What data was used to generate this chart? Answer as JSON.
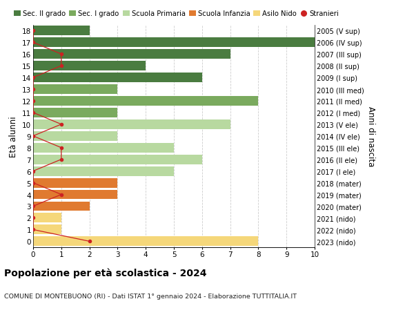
{
  "ages": [
    18,
    17,
    16,
    15,
    14,
    13,
    12,
    11,
    10,
    9,
    8,
    7,
    6,
    5,
    4,
    3,
    2,
    1,
    0
  ],
  "right_labels": [
    "2005 (V sup)",
    "2006 (IV sup)",
    "2007 (III sup)",
    "2008 (II sup)",
    "2009 (I sup)",
    "2010 (III med)",
    "2011 (II med)",
    "2012 (I med)",
    "2013 (V ele)",
    "2014 (IV ele)",
    "2015 (III ele)",
    "2016 (II ele)",
    "2017 (I ele)",
    "2018 (mater)",
    "2019 (mater)",
    "2020 (mater)",
    "2021 (nido)",
    "2022 (nido)",
    "2023 (nido)"
  ],
  "bar_values": [
    2,
    10,
    7,
    4,
    6,
    3,
    8,
    3,
    7,
    3,
    5,
    6,
    5,
    3,
    3,
    2,
    1,
    1,
    8
  ],
  "bar_colors": [
    "#4a7c40",
    "#4a7c40",
    "#4a7c40",
    "#4a7c40",
    "#4a7c40",
    "#7aaa5e",
    "#7aaa5e",
    "#7aaa5e",
    "#b8d9a0",
    "#b8d9a0",
    "#b8d9a0",
    "#b8d9a0",
    "#b8d9a0",
    "#e07a30",
    "#e07a30",
    "#e07a30",
    "#f5d77a",
    "#f5d77a",
    "#f5d77a"
  ],
  "stranieri_x": [
    0,
    0,
    1,
    1,
    0,
    0,
    0,
    0,
    1,
    0,
    1,
    1,
    0,
    0,
    1,
    0,
    0,
    0,
    2
  ],
  "xlim": [
    0,
    10
  ],
  "ylim": [
    -0.5,
    18.5
  ],
  "ylabel": "Età alunni",
  "right_ylabel": "Anni di nascita",
  "title": "Popolazione per età scolastica - 2024",
  "subtitle": "COMUNE DI MONTEBUONO (RI) - Dati ISTAT 1° gennaio 2024 - Elaborazione TUTTITALIA.IT",
  "legend_labels": [
    "Sec. II grado",
    "Sec. I grado",
    "Scuola Primaria",
    "Scuola Infanzia",
    "Asilo Nido",
    "Stranieri"
  ],
  "legend_colors": [
    "#4a7c40",
    "#7aaa5e",
    "#b8d9a0",
    "#e07a30",
    "#f5d77a",
    "#cc2222"
  ],
  "stranieri_color": "#cc2222",
  "grid_color": "#cccccc",
  "bar_height": 0.82,
  "xticks": [
    0,
    1,
    2,
    3,
    4,
    5,
    6,
    7,
    8,
    9,
    10
  ],
  "background_color": "#ffffff"
}
